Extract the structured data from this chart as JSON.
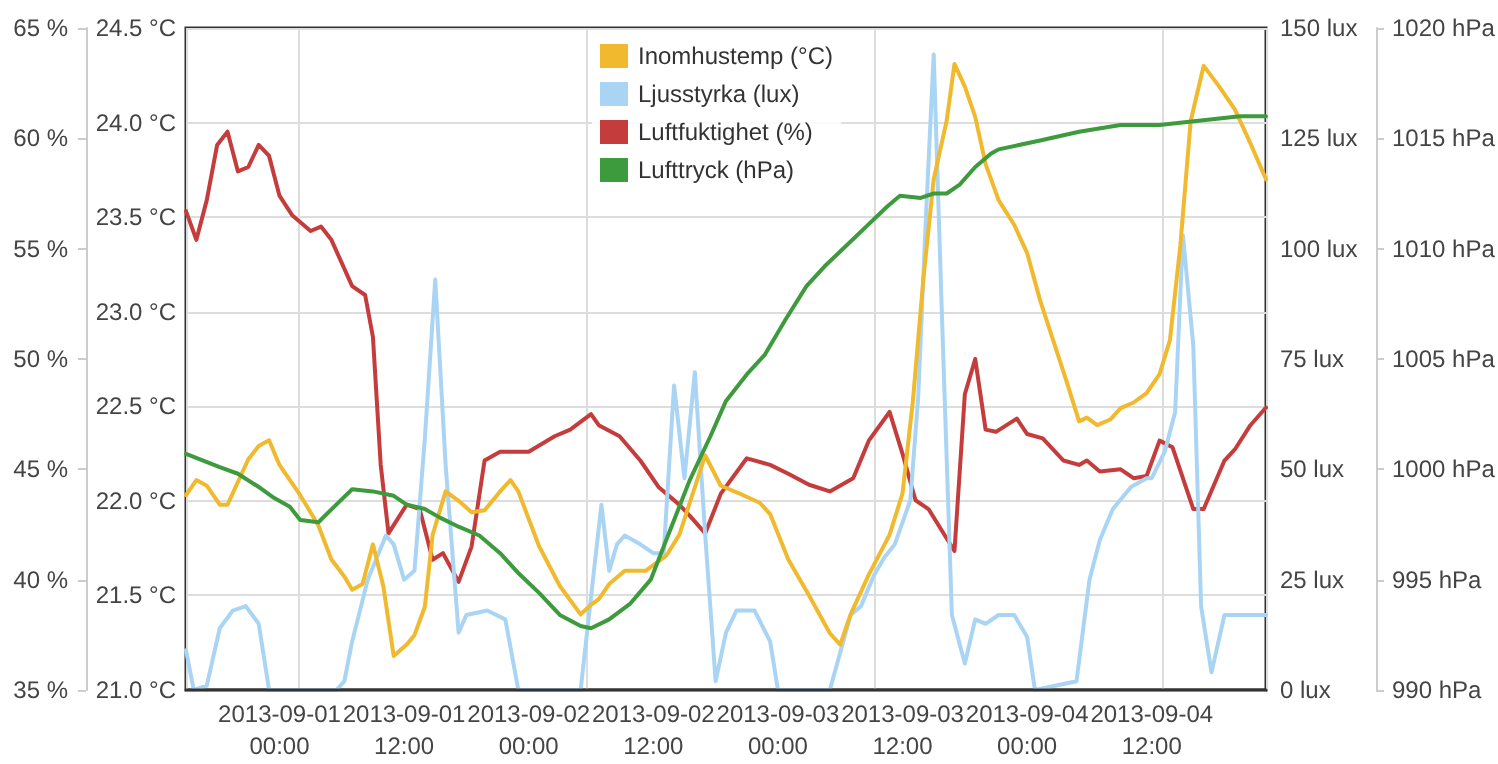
{
  "chart_data": [
    {
      "type": "line",
      "grid": true,
      "legend": "top",
      "line_style": "solid",
      "marker": "none",
      "xlim": [
        "2013-08-31T15:00",
        "2013-09-04T23:00"
      ],
      "xticks": [
        {
          "value": "2013-09-01T00:00",
          "label": "2013-09-01\n00:00"
        },
        {
          "value": "2013-09-01T12:00",
          "label": "2013-09-01\n12:00"
        },
        {
          "value": "2013-09-02T00:00",
          "label": "2013-09-02\n00:00"
        },
        {
          "value": "2013-09-02T12:00",
          "label": "2013-09-02\n12:00"
        },
        {
          "value": "2013-09-03T00:00",
          "label": "2013-09-03\n00:00"
        },
        {
          "value": "2013-09-03T12:00",
          "label": "2013-09-03\n12:00"
        },
        {
          "value": "2013-09-04T00:00",
          "label": "2013-09-04\n00:00"
        },
        {
          "value": "2013-09-04T12:00",
          "label": "2013-09-04\n12:00"
        }
      ],
      "ylim": [
        21,
        24.5
      ],
      "yticks": [
        {
          "value": 21,
          "label": "21.0 °C"
        },
        {
          "value": 21.5,
          "label": "21.5 °C"
        },
        {
          "value": 22,
          "label": "22.0 °C"
        },
        {
          "value": 22.5,
          "label": "22.5 °C"
        },
        {
          "value": 23,
          "label": "23.0 °C"
        },
        {
          "value": 23.5,
          "label": "23.5 °C"
        },
        {
          "value": 24,
          "label": "24.0 °C"
        },
        {
          "value": 24.5,
          "label": "24.5 °C"
        }
      ],
      "y2lim": [
        0,
        150
      ],
      "y2ticks": [
        {
          "value": 0,
          "label": "0 lux"
        },
        {
          "value": 25,
          "label": "25 lux"
        },
        {
          "value": 50,
          "label": "50 lux"
        },
        {
          "value": 75,
          "label": "75 lux"
        },
        {
          "value": 100,
          "label": "100 lux"
        },
        {
          "value": 125,
          "label": "125 lux"
        },
        {
          "value": 150,
          "label": "150 lux"
        }
      ],
      "y3lim": [
        35,
        65
      ],
      "y3ticks": [
        {
          "value": 35,
          "label": "35 %"
        },
        {
          "value": 40,
          "label": "40 %"
        },
        {
          "value": 45,
          "label": "45 %"
        },
        {
          "value": 50,
          "label": "50 %"
        },
        {
          "value": 55,
          "label": "55 %"
        },
        {
          "value": 60,
          "label": "60 %"
        },
        {
          "value": 65,
          "label": "65 %"
        }
      ],
      "series": [
        {
          "name": "Inomhustemp (°C)",
          "color": "#f0b92e",
          "axis": "y",
          "x": [
            "2013-08-31T15:00",
            "2013-08-31T16:00",
            "2013-08-31T17:00",
            "2013-08-31T18:15",
            "2013-08-31T19:00",
            "2013-08-31T21:00",
            "2013-08-31T22:00",
            "2013-08-31T23:00",
            "2013-09-01T00:00",
            "2013-09-01T02:00",
            "2013-09-01T03:45",
            "2013-09-01T05:00",
            "2013-09-01T06:15",
            "2013-09-01T07:00",
            "2013-09-01T08:00",
            "2013-09-01T09:00",
            "2013-09-01T10:00",
            "2013-09-01T11:00",
            "2013-09-01T12:15",
            "2013-09-01T13:00",
            "2013-09-01T14:00",
            "2013-09-01T14:45",
            "2013-09-01T16:00",
            "2013-09-01T17:15",
            "2013-09-01T18:30",
            "2013-09-01T19:45",
            "2013-09-01T21:15",
            "2013-09-01T22:15",
            "2013-09-01T23:00",
            "2013-09-02T01:00",
            "2013-09-02T03:00",
            "2013-09-02T05:00",
            "2013-09-02T06:00",
            "2013-09-02T06:45",
            "2013-09-02T07:45",
            "2013-09-02T09:15",
            "2013-09-02T11:15",
            "2013-09-02T13:15",
            "2013-09-02T14:30",
            "2013-09-02T17:00",
            "2013-09-02T18:30",
            "2013-09-02T20:15",
            "2013-09-02T22:15",
            "2013-09-02T23:15",
            "2013-09-03T01:00",
            "2013-09-03T03:00",
            "2013-09-03T05:00",
            "2013-09-03T06:00",
            "2013-09-03T07:00",
            "2013-09-03T08:45",
            "2013-09-03T10:45",
            "2013-09-03T12:00",
            "2013-09-03T13:00",
            "2013-09-03T14:00",
            "2013-09-03T15:00",
            "2013-09-03T16:15",
            "2013-09-03T17:00",
            "2013-09-03T18:00",
            "2013-09-03T19:00",
            "2013-09-03T20:00",
            "2013-09-03T21:15",
            "2013-09-03T22:45",
            "2013-09-04T00:00",
            "2013-09-04T01:15",
            "2013-09-04T02:30",
            "2013-09-04T03:45",
            "2013-09-04T05:00",
            "2013-09-04T05:45",
            "2013-09-04T06:45",
            "2013-09-04T08:00",
            "2013-09-04T09:00",
            "2013-09-04T10:15",
            "2013-09-04T11:30",
            "2013-09-04T12:45",
            "2013-09-04T13:45",
            "2013-09-04T14:45",
            "2013-09-04T15:45",
            "2013-09-04T17:00",
            "2013-09-04T18:30",
            "2013-09-04T20:00",
            "2013-09-04T21:30",
            "2013-09-04T23:00"
          ],
          "values": [
            22.03,
            22.11,
            22.08,
            21.98,
            21.98,
            22.22,
            22.29,
            22.32,
            22.19,
            22.03,
            21.87,
            21.69,
            21.6,
            21.53,
            21.56,
            21.77,
            21.55,
            21.18,
            21.24,
            21.29,
            21.44,
            21.82,
            22.05,
            22.0,
            21.94,
            21.95,
            22.05,
            22.11,
            22.05,
            21.76,
            21.55,
            21.4,
            21.45,
            21.48,
            21.56,
            21.63,
            21.63,
            21.71,
            21.82,
            22.24,
            22.08,
            22.04,
            21.99,
            21.93,
            21.69,
            21.5,
            21.3,
            21.24,
            21.4,
            21.61,
            21.82,
            22.04,
            22.53,
            23.17,
            23.7,
            24.01,
            24.31,
            24.19,
            24.03,
            23.78,
            23.59,
            23.46,
            23.31,
            23.06,
            22.85,
            22.64,
            22.42,
            22.44,
            22.4,
            22.43,
            22.49,
            22.52,
            22.57,
            22.67,
            22.85,
            23.35,
            24.01,
            24.3,
            24.19,
            24.07,
            23.89,
            23.7
          ]
        },
        {
          "name": "Ljusstyrka (lux)",
          "color": "#aad4f4",
          "axis": "y2",
          "x": [
            "2013-08-31T15:00",
            "2013-08-31T15:45",
            "2013-08-31T17:00",
            "2013-08-31T18:15",
            "2013-08-31T19:30",
            "2013-08-31T20:45",
            "2013-08-31T22:00",
            "2013-08-31T23:00",
            "2013-09-01T05:30",
            "2013-09-01T06:15",
            "2013-09-01T07:00",
            "2013-09-01T08:30",
            "2013-09-01T10:15",
            "2013-09-01T11:00",
            "2013-09-01T12:00",
            "2013-09-01T13:00",
            "2013-09-01T14:00",
            "2013-09-01T15:00",
            "2013-09-01T16:00",
            "2013-09-01T17:15",
            "2013-09-01T18:00",
            "2013-09-01T20:00",
            "2013-09-01T21:45",
            "2013-09-01T23:00",
            "2013-09-02T05:00",
            "2013-09-02T07:00",
            "2013-09-02T07:45",
            "2013-09-02T08:30",
            "2013-09-02T09:15",
            "2013-09-02T10:45",
            "2013-09-02T12:00",
            "2013-09-02T13:00",
            "2013-09-02T14:00",
            "2013-09-02T15:00",
            "2013-09-02T16:00",
            "2013-09-02T17:00",
            "2013-09-02T18:00",
            "2013-09-02T19:00",
            "2013-09-02T20:00",
            "2013-09-02T21:45",
            "2013-09-02T23:15",
            "2013-09-03T00:00",
            "2013-09-03T05:00",
            "2013-09-03T07:00",
            "2013-09-03T08:00",
            "2013-09-03T09:15",
            "2013-09-03T10:15",
            "2013-09-03T11:15",
            "2013-09-03T12:45",
            "2013-09-03T13:30",
            "2013-09-03T14:15",
            "2013-09-03T15:00",
            "2013-09-03T15:45",
            "2013-09-03T16:45",
            "2013-09-03T18:00",
            "2013-09-03T19:00",
            "2013-09-03T20:00",
            "2013-09-03T21:15",
            "2013-09-03T22:45",
            "2013-09-04T00:00",
            "2013-09-04T00:45",
            "2013-09-04T04:45",
            "2013-09-04T06:00",
            "2013-09-04T07:00",
            "2013-09-04T08:15",
            "2013-09-04T10:00",
            "2013-09-04T11:30",
            "2013-09-04T12:00",
            "2013-09-04T13:15",
            "2013-09-04T14:15",
            "2013-09-04T15:00",
            "2013-09-04T16:00",
            "2013-09-04T16:45",
            "2013-09-04T17:45",
            "2013-09-04T19:00",
            "2013-09-04T20:30",
            "2013-09-04T23:00"
          ],
          "values": [
            9,
            0,
            1,
            14,
            18,
            19,
            15,
            0,
            0,
            2,
            11,
            25,
            35,
            33,
            25,
            27,
            57,
            93,
            51,
            13,
            17,
            18,
            16,
            0,
            0,
            42,
            27,
            33,
            35,
            33,
            31,
            31,
            69,
            48,
            72,
            35,
            2,
            13,
            18,
            18,
            11,
            0,
            0,
            17,
            19,
            26,
            30,
            33,
            43,
            66,
            107,
            144,
            88,
            17,
            6,
            16,
            15,
            17,
            17,
            12,
            0,
            2,
            25,
            34,
            41,
            46,
            48,
            48,
            54,
            63,
            103,
            78,
            19,
            4,
            17,
            17,
            17
          ]
        },
        {
          "name": "Luftfuktighet (%)",
          "color": "#c43c3c",
          "axis": "y3",
          "x": [
            "2013-08-31T15:00",
            "2013-08-31T16:00",
            "2013-08-31T17:00",
            "2013-08-31T18:00",
            "2013-08-31T19:00",
            "2013-08-31T20:00",
            "2013-08-31T21:00",
            "2013-08-31T22:00",
            "2013-08-31T23:00",
            "2013-09-01T00:00",
            "2013-09-01T01:15",
            "2013-09-01T03:00",
            "2013-09-01T04:00",
            "2013-09-01T05:00",
            "2013-09-01T07:00",
            "2013-09-01T08:15",
            "2013-09-01T09:00",
            "2013-09-01T09:45",
            "2013-09-01T10:30",
            "2013-09-01T12:15",
            "2013-09-01T13:30",
            "2013-09-01T14:45",
            "2013-09-01T15:45",
            "2013-09-01T17:15",
            "2013-09-01T18:30",
            "2013-09-01T19:45",
            "2013-09-01T21:15",
            "2013-09-02T00:00",
            "2013-09-02T02:30",
            "2013-09-02T04:00",
            "2013-09-02T06:00",
            "2013-09-02T06:45",
            "2013-09-02T08:45",
            "2013-09-02T10:45",
            "2013-09-02T12:30",
            "2013-09-02T14:30",
            "2013-09-02T15:30",
            "2013-09-02T17:00",
            "2013-09-02T18:30",
            "2013-09-02T21:00",
            "2013-09-02T23:15",
            "2013-09-03T01:00",
            "2013-09-03T03:00",
            "2013-09-03T05:00",
            "2013-09-03T07:15",
            "2013-09-03T08:45",
            "2013-09-03T10:45",
            "2013-09-03T12:00",
            "2013-09-03T13:15",
            "2013-09-03T14:30",
            "2013-09-03T17:00",
            "2013-09-03T18:00",
            "2013-09-03T19:00",
            "2013-09-03T20:00",
            "2013-09-03T21:00",
            "2013-09-03T23:00",
            "2013-09-04T00:00",
            "2013-09-04T01:30",
            "2013-09-04T03:30",
            "2013-09-04T05:00",
            "2013-09-04T05:45",
            "2013-09-04T07:00",
            "2013-09-04T09:00",
            "2013-09-04T10:15",
            "2013-09-04T11:30",
            "2013-09-04T12:45",
            "2013-09-04T14:00",
            "2013-09-04T16:00",
            "2013-09-04T17:00",
            "2013-09-04T19:00",
            "2013-09-04T20:00",
            "2013-09-04T21:30",
            "2013-09-04T23:00"
          ],
          "values": [
            56.7,
            55.4,
            57.2,
            59.7,
            60.3,
            58.5,
            58.7,
            59.7,
            59.2,
            57.4,
            56.5,
            55.8,
            56.0,
            55.4,
            53.3,
            52.9,
            51.0,
            45.2,
            42.1,
            43.4,
            43.2,
            40.9,
            41.2,
            39.9,
            41.5,
            45.4,
            45.8,
            45.8,
            46.5,
            46.8,
            47.5,
            47.0,
            46.5,
            45.4,
            44.2,
            43.4,
            42.9,
            42.1,
            43.9,
            45.5,
            45.2,
            44.8,
            44.3,
            44.0,
            44.6,
            46.3,
            47.6,
            45.7,
            43.6,
            43.2,
            41.3,
            48.4,
            50.0,
            46.8,
            46.7,
            47.3,
            46.6,
            46.4,
            45.4,
            45.2,
            45.4,
            44.9,
            45.0,
            44.6,
            44.7,
            46.3,
            46.0,
            43.2,
            43.2,
            45.4,
            45.9,
            47.0,
            47.8
          ]
        }
      ]
    },
    {
      "type": "line",
      "legend": "top",
      "line_style": "solid",
      "marker": "none",
      "tick_labels": "y",
      "xlim": [
        "2013-08-31T15:00",
        "2013-09-04T23:00"
      ],
      "ylim": [
        990,
        1020
      ],
      "yticks": [
        {
          "value": 990,
          "label": "990 hPa"
        },
        {
          "value": 995,
          "label": "995 hPa"
        },
        {
          "value": 1000,
          "label": "1000 hPa"
        },
        {
          "value": 1005,
          "label": "1005 hPa"
        },
        {
          "value": 1010,
          "label": "1010 hPa"
        },
        {
          "value": 1015,
          "label": "1015 hPa"
        },
        {
          "value": 1020,
          "label": "1020 hPa"
        }
      ],
      "series": [
        {
          "name": "Lufttryck (hPa)",
          "color": "#3d9b3d",
          "x": [
            "2013-08-31T15:00",
            "2013-08-31T18:15",
            "2013-08-31T20:00",
            "2013-08-31T22:00",
            "2013-08-31T23:30",
            "2013-09-01T01:00",
            "2013-09-01T02:00",
            "2013-09-01T03:45",
            "2013-09-01T05:15",
            "2013-09-01T07:00",
            "2013-09-01T09:00",
            "2013-09-01T11:00",
            "2013-09-01T12:15",
            "2013-09-01T14:00",
            "2013-09-01T15:30",
            "2013-09-01T17:15",
            "2013-09-01T19:15",
            "2013-09-01T21:15",
            "2013-09-01T23:00",
            "2013-09-02T01:00",
            "2013-09-02T03:00",
            "2013-09-02T05:00",
            "2013-09-02T06:00",
            "2013-09-02T07:45",
            "2013-09-02T09:45",
            "2013-09-02T11:45",
            "2013-09-02T13:30",
            "2013-09-02T15:30",
            "2013-09-02T17:30",
            "2013-09-02T19:00",
            "2013-09-02T21:00",
            "2013-09-02T22:45",
            "2013-09-03T00:45",
            "2013-09-03T02:45",
            "2013-09-03T04:30",
            "2013-09-03T06:30",
            "2013-09-03T08:30",
            "2013-09-03T10:30",
            "2013-09-03T11:45",
            "2013-09-03T13:45",
            "2013-09-03T15:00",
            "2013-09-03T16:15",
            "2013-09-03T17:30",
            "2013-09-03T19:00",
            "2013-09-03T20:30",
            "2013-09-03T21:15",
            "2013-09-04T01:15",
            "2013-09-04T05:00",
            "2013-09-04T09:00",
            "2013-09-04T12:45",
            "2013-09-04T16:30",
            "2013-09-04T20:30",
            "2013-09-04T23:00"
          ],
          "values": [
            1000.7,
            1000.1,
            999.8,
            999.2,
            998.7,
            998.3,
            997.7,
            997.6,
            998.3,
            999.1,
            999.0,
            998.8,
            998.4,
            998.2,
            997.8,
            997.4,
            997.0,
            996.2,
            995.3,
            994.4,
            993.4,
            992.9,
            992.8,
            993.2,
            993.9,
            995.0,
            997.1,
            999.5,
            1001.5,
            1003.1,
            1004.3,
            1005.2,
            1006.8,
            1008.3,
            1009.2,
            1010.1,
            1011.0,
            1011.9,
            1012.4,
            1012.3,
            1012.5,
            1012.5,
            1012.9,
            1013.7,
            1014.3,
            1014.5,
            1014.9,
            1015.3,
            1015.6,
            1015.6,
            1015.8,
            1016.0,
            1016.0
          ]
        }
      ]
    }
  ]
}
